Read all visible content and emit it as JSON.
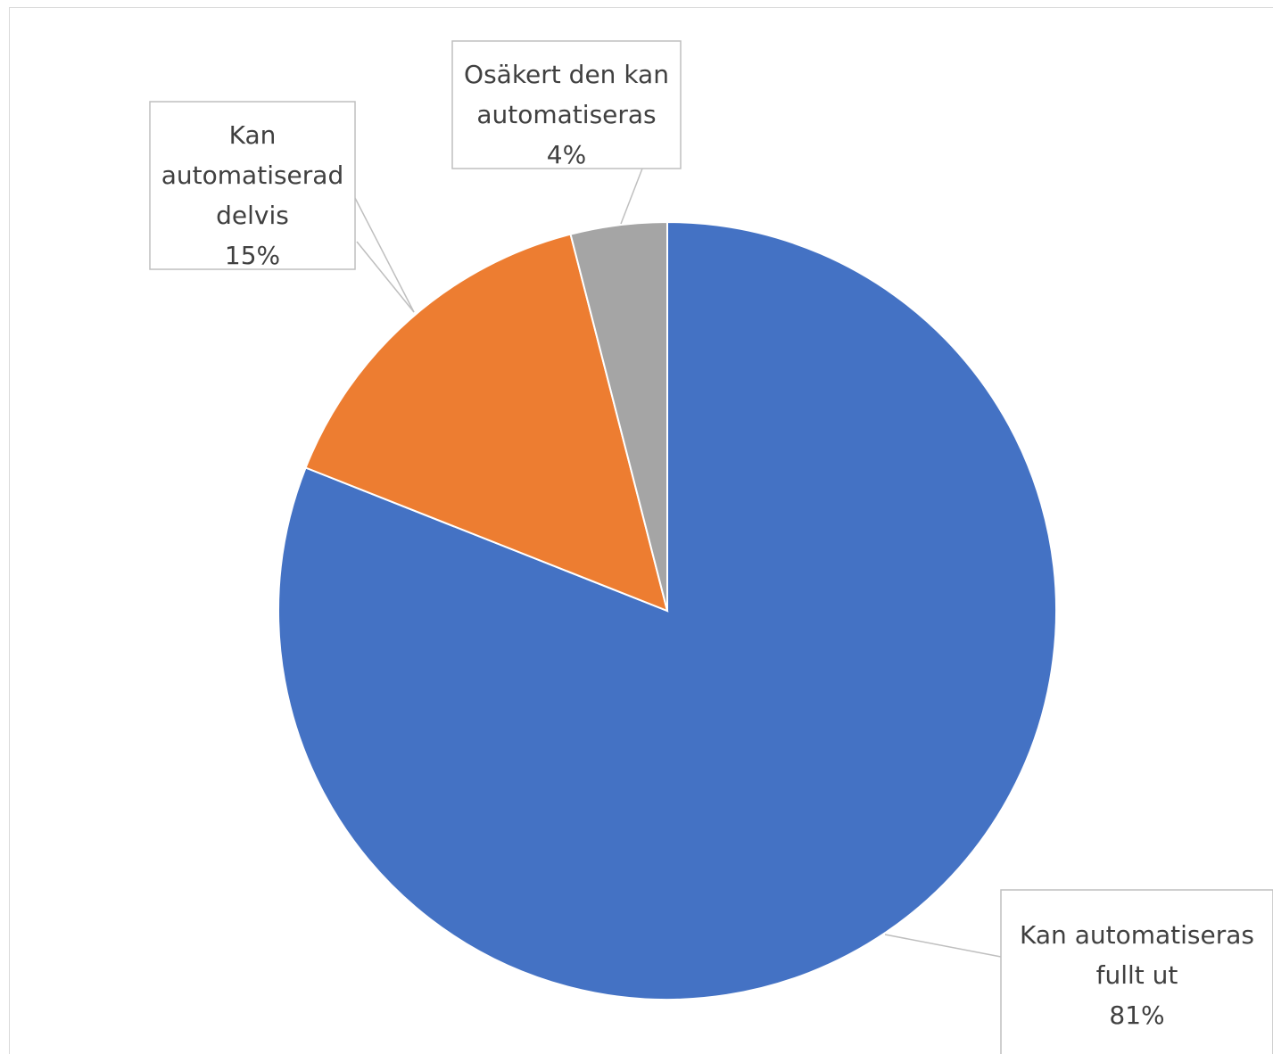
{
  "chart_data": {
    "type": "pie",
    "title": "",
    "slices": [
      {
        "label_lines": [
          "Kan automatiseras",
          "fullt ut"
        ],
        "percent_label": "81%",
        "value": 81,
        "color": "#4472c4"
      },
      {
        "label_lines": [
          "Kan",
          "automatiserad",
          "delvis"
        ],
        "percent_label": "15%",
        "value": 15,
        "color": "#ed7d31"
      },
      {
        "label_lines": [
          "Osäkert den kan",
          "automatiseras"
        ],
        "percent_label": "4%",
        "value": 4,
        "color": "#a5a5a5"
      }
    ],
    "legend": "none",
    "data_labels": "callouts",
    "start_angle": "12 o'clock",
    "direction": "clockwise"
  }
}
